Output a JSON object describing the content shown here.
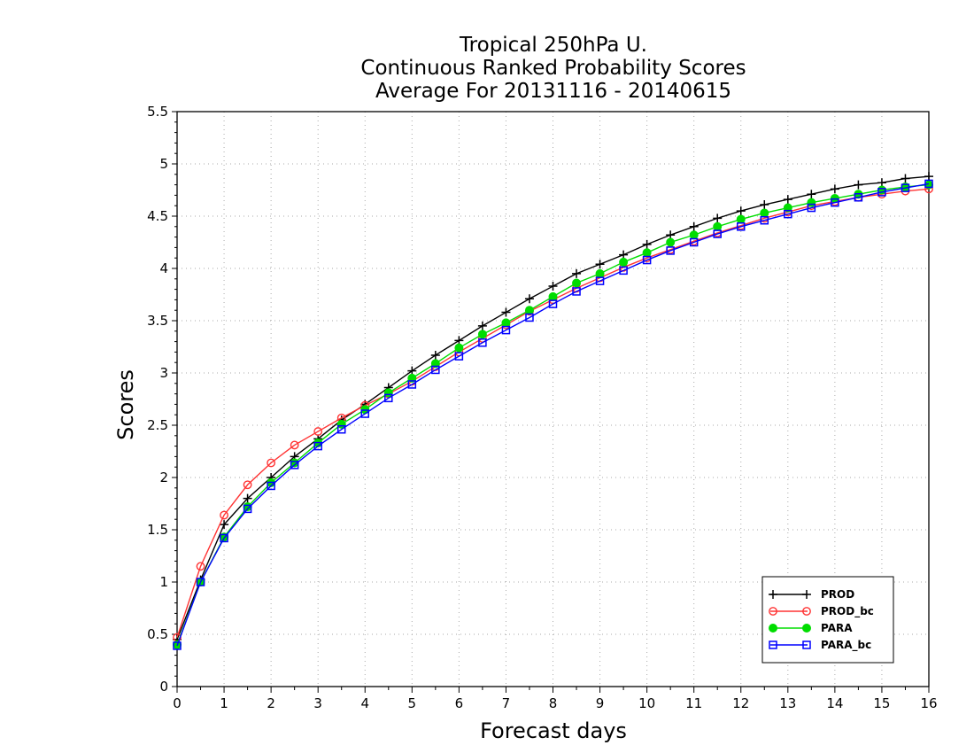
{
  "chart_data": {
    "type": "line",
    "title": [
      "Tropical 250hPa U.",
      "Continuous Ranked Probability Scores",
      "Average For 20131116 - 20140615"
    ],
    "xlabel": "Forecast days",
    "ylabel": "Scores",
    "xlim": [
      0,
      16
    ],
    "ylim": [
      0,
      5.5
    ],
    "xticks": [
      0,
      1,
      2,
      3,
      4,
      5,
      6,
      7,
      8,
      9,
      10,
      11,
      12,
      13,
      14,
      15,
      16
    ],
    "xtick_labels": [
      "0",
      "1",
      "2",
      "3",
      "4",
      "5",
      "6",
      "7",
      "8",
      "9",
      "10",
      "11",
      "12",
      "13",
      "14",
      "15",
      "16"
    ],
    "yticks": [
      0,
      0.5,
      1,
      1.5,
      2,
      2.5,
      3,
      3.5,
      4,
      4.5,
      5,
      5.5
    ],
    "ytick_labels": [
      "0",
      "0.5",
      "1",
      "1.5",
      "2",
      "2.5",
      "3",
      "3.5",
      "4",
      "4.5",
      "5",
      "5.5"
    ],
    "grid": true,
    "legend_position": "bottom-right",
    "x": [
      0,
      0.5,
      1,
      1.5,
      2,
      2.5,
      3,
      3.5,
      4,
      4.5,
      5,
      5.5,
      6,
      6.5,
      7,
      7.5,
      8,
      8.5,
      9,
      9.5,
      10,
      10.5,
      11,
      11.5,
      12,
      12.5,
      13,
      13.5,
      14,
      14.5,
      15,
      15.5,
      16
    ],
    "series": [
      {
        "name": "PROD",
        "color": "#000000",
        "marker": "plus",
        "values": [
          0.45,
          1.02,
          1.55,
          1.8,
          2.0,
          2.2,
          2.37,
          2.55,
          2.7,
          2.86,
          3.02,
          3.17,
          3.31,
          3.45,
          3.58,
          3.71,
          3.83,
          3.95,
          4.04,
          4.13,
          4.23,
          4.32,
          4.4,
          4.48,
          4.55,
          4.61,
          4.66,
          4.71,
          4.76,
          4.8,
          4.82,
          4.86,
          4.88
        ]
      },
      {
        "name": "PROD_bc",
        "color": "#ff3333",
        "marker": "open-circle",
        "values": [
          0.47,
          1.15,
          1.64,
          1.93,
          2.14,
          2.31,
          2.44,
          2.57,
          2.69,
          2.8,
          2.92,
          3.06,
          3.2,
          3.33,
          3.46,
          3.59,
          3.7,
          3.81,
          3.91,
          4.01,
          4.1,
          4.18,
          4.26,
          4.34,
          4.41,
          4.48,
          4.54,
          4.6,
          4.64,
          4.68,
          4.71,
          4.74,
          4.76
        ]
      },
      {
        "name": "PARA",
        "color": "#00dd00",
        "marker": "filled-circle",
        "values": [
          0.4,
          1.0,
          1.43,
          1.72,
          1.95,
          2.14,
          2.33,
          2.51,
          2.65,
          2.81,
          2.95,
          3.09,
          3.24,
          3.37,
          3.48,
          3.6,
          3.73,
          3.86,
          3.95,
          4.06,
          4.15,
          4.25,
          4.32,
          4.4,
          4.47,
          4.53,
          4.58,
          4.63,
          4.67,
          4.71,
          4.75,
          4.78,
          4.8
        ]
      },
      {
        "name": "PARA_bc",
        "color": "#0000ff",
        "marker": "open-square",
        "values": [
          0.39,
          1.0,
          1.42,
          1.7,
          1.92,
          2.12,
          2.3,
          2.46,
          2.61,
          2.76,
          2.89,
          3.03,
          3.16,
          3.29,
          3.41,
          3.53,
          3.66,
          3.78,
          3.88,
          3.98,
          4.08,
          4.17,
          4.25,
          4.33,
          4.4,
          4.46,
          4.52,
          4.58,
          4.63,
          4.68,
          4.73,
          4.77,
          4.81
        ]
      }
    ]
  }
}
